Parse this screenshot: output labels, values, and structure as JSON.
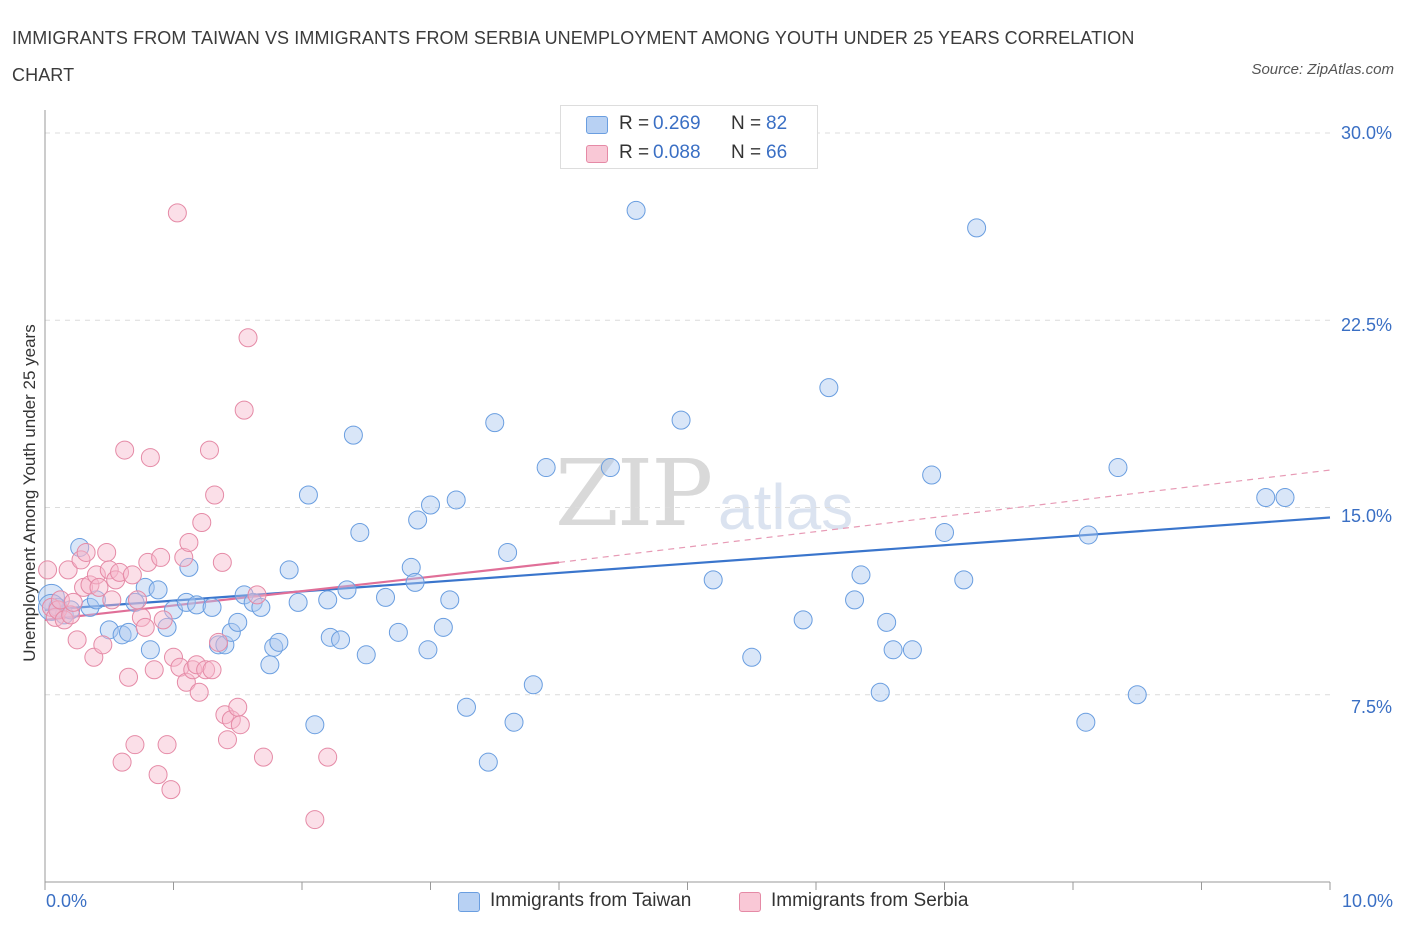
{
  "title": "IMMIGRANTS FROM TAIWAN VS IMMIGRANTS FROM SERBIA UNEMPLOYMENT AMONG YOUTH UNDER 25 YEARS CORRELATION CHART",
  "source": "Source: ZipAtlas.com",
  "watermark": {
    "zip": "ZIP",
    "atlas": "atlas"
  },
  "legend_top": [
    {
      "r_label": "R = ",
      "r_value": "0.269",
      "n_label": "N = ",
      "n_value": "82",
      "color": "#aac8f0"
    },
    {
      "r_label": "R = ",
      "r_value": "0.088",
      "n_label": "N = ",
      "n_value": "66",
      "color": "#f7b9cb"
    }
  ],
  "chart_data": {
    "type": "scatter",
    "title": "IMMIGRANTS FROM TAIWAN VS IMMIGRANTS FROM SERBIA UNEMPLOYMENT AMONG YOUTH UNDER 25 YEARS CORRELATION CHART",
    "xlabel": "",
    "ylabel": "Unemployment Among Youth under 25 years",
    "xlim": [
      0,
      10
    ],
    "ylim": [
      0,
      30.5
    ],
    "x_tick_labels": [
      "0.0%",
      "10.0%"
    ],
    "y_ticks": [
      7.5,
      15.0,
      22.5,
      30.0
    ],
    "y_tick_labels": [
      "7.5%",
      "15.0%",
      "22.5%",
      "30.0%"
    ],
    "grid": true,
    "legend_position": "bottom",
    "series": [
      {
        "name": "Immigrants from Taiwan",
        "color": "#6a9ee0",
        "fill": "#aac8f0",
        "trend": {
          "x": [
            0,
            10
          ],
          "y": [
            10.9,
            14.6
          ],
          "style": "solid"
        },
        "points": [
          [
            0.05,
            11.4
          ],
          [
            0.1,
            11.0
          ],
          [
            0.15,
            10.7
          ],
          [
            0.2,
            10.9
          ],
          [
            0.27,
            13.4
          ],
          [
            0.35,
            11.0
          ],
          [
            0.4,
            11.3
          ],
          [
            0.5,
            10.1
          ],
          [
            0.6,
            9.9
          ],
          [
            0.65,
            10.0
          ],
          [
            0.7,
            11.2
          ],
          [
            0.78,
            11.8
          ],
          [
            0.82,
            9.3
          ],
          [
            0.88,
            11.7
          ],
          [
            0.95,
            10.2
          ],
          [
            1.0,
            10.9
          ],
          [
            1.1,
            11.2
          ],
          [
            1.12,
            12.6
          ],
          [
            1.18,
            11.1
          ],
          [
            1.3,
            11.0
          ],
          [
            1.35,
            9.5
          ],
          [
            1.4,
            9.5
          ],
          [
            1.45,
            10.0
          ],
          [
            1.5,
            10.4
          ],
          [
            1.55,
            11.5
          ],
          [
            1.62,
            11.2
          ],
          [
            1.68,
            11.0
          ],
          [
            1.75,
            8.7
          ],
          [
            1.78,
            9.4
          ],
          [
            1.82,
            9.6
          ],
          [
            1.9,
            12.5
          ],
          [
            1.97,
            11.2
          ],
          [
            2.05,
            15.5
          ],
          [
            2.1,
            6.3
          ],
          [
            2.2,
            11.3
          ],
          [
            2.22,
            9.8
          ],
          [
            2.3,
            9.7
          ],
          [
            2.35,
            11.7
          ],
          [
            2.4,
            17.9
          ],
          [
            2.45,
            14.0
          ],
          [
            2.5,
            9.1
          ],
          [
            2.65,
            11.4
          ],
          [
            2.75,
            10.0
          ],
          [
            2.85,
            12.6
          ],
          [
            2.88,
            12.0
          ],
          [
            2.9,
            14.5
          ],
          [
            2.98,
            9.3
          ],
          [
            3.0,
            15.1
          ],
          [
            3.1,
            10.2
          ],
          [
            3.15,
            11.3
          ],
          [
            3.2,
            15.3
          ],
          [
            3.28,
            7.0
          ],
          [
            3.45,
            4.8
          ],
          [
            3.5,
            18.4
          ],
          [
            3.6,
            13.2
          ],
          [
            3.65,
            6.4
          ],
          [
            3.8,
            7.9
          ],
          [
            3.9,
            16.6
          ],
          [
            4.4,
            16.6
          ],
          [
            4.6,
            26.9
          ],
          [
            4.95,
            18.5
          ],
          [
            5.2,
            12.1
          ],
          [
            5.5,
            9.0
          ],
          [
            5.9,
            10.5
          ],
          [
            6.1,
            19.8
          ],
          [
            6.3,
            11.3
          ],
          [
            6.35,
            12.3
          ],
          [
            6.5,
            7.6
          ],
          [
            6.55,
            10.4
          ],
          [
            6.6,
            9.3
          ],
          [
            6.75,
            9.3
          ],
          [
            6.9,
            16.3
          ],
          [
            7.0,
            14.0
          ],
          [
            7.15,
            12.1
          ],
          [
            7.25,
            26.2
          ],
          [
            8.1,
            6.4
          ],
          [
            8.12,
            13.9
          ],
          [
            8.35,
            16.6
          ],
          [
            8.5,
            7.5
          ],
          [
            9.5,
            15.4
          ],
          [
            9.65,
            15.4
          ],
          [
            0.05,
            11.0
          ]
        ]
      },
      {
        "name": "Immigrants from Serbia",
        "color": "#e58aa6",
        "fill": "#f7b9cb",
        "trend": {
          "x": [
            0,
            4.0
          ],
          "y": [
            10.5,
            12.8
          ],
          "style": "solid",
          "extension": {
            "x": [
              4.0,
              10
            ],
            "y": [
              12.8,
              16.5
            ],
            "style": "dashed"
          }
        },
        "points": [
          [
            0.02,
            12.5
          ],
          [
            0.05,
            11.0
          ],
          [
            0.08,
            10.6
          ],
          [
            0.1,
            10.9
          ],
          [
            0.12,
            11.3
          ],
          [
            0.15,
            10.5
          ],
          [
            0.18,
            12.5
          ],
          [
            0.2,
            10.7
          ],
          [
            0.22,
            11.2
          ],
          [
            0.25,
            9.7
          ],
          [
            0.28,
            12.9
          ],
          [
            0.3,
            11.8
          ],
          [
            0.32,
            13.2
          ],
          [
            0.35,
            11.9
          ],
          [
            0.38,
            9.0
          ],
          [
            0.4,
            12.3
          ],
          [
            0.42,
            11.8
          ],
          [
            0.45,
            9.5
          ],
          [
            0.48,
            13.2
          ],
          [
            0.5,
            12.5
          ],
          [
            0.52,
            11.3
          ],
          [
            0.55,
            12.1
          ],
          [
            0.58,
            12.4
          ],
          [
            0.6,
            4.8
          ],
          [
            0.62,
            17.3
          ],
          [
            0.65,
            8.2
          ],
          [
            0.68,
            12.3
          ],
          [
            0.7,
            5.5
          ],
          [
            0.72,
            11.3
          ],
          [
            0.75,
            10.6
          ],
          [
            0.78,
            10.2
          ],
          [
            0.8,
            12.8
          ],
          [
            0.82,
            17.0
          ],
          [
            0.85,
            8.5
          ],
          [
            0.88,
            4.3
          ],
          [
            0.9,
            13.0
          ],
          [
            0.92,
            10.5
          ],
          [
            0.95,
            5.5
          ],
          [
            0.98,
            3.7
          ],
          [
            1.0,
            9.0
          ],
          [
            1.03,
            26.8
          ],
          [
            1.05,
            8.6
          ],
          [
            1.08,
            13.0
          ],
          [
            1.1,
            8.0
          ],
          [
            1.12,
            13.6
          ],
          [
            1.15,
            8.5
          ],
          [
            1.18,
            8.7
          ],
          [
            1.2,
            7.6
          ],
          [
            1.22,
            14.4
          ],
          [
            1.25,
            8.5
          ],
          [
            1.28,
            17.3
          ],
          [
            1.3,
            8.5
          ],
          [
            1.32,
            15.5
          ],
          [
            1.35,
            9.6
          ],
          [
            1.38,
            12.8
          ],
          [
            1.4,
            6.7
          ],
          [
            1.42,
            5.7
          ],
          [
            1.45,
            6.5
          ],
          [
            1.5,
            7.0
          ],
          [
            1.52,
            6.3
          ],
          [
            1.55,
            18.9
          ],
          [
            1.58,
            21.8
          ],
          [
            1.65,
            11.5
          ],
          [
            1.7,
            5.0
          ],
          [
            2.1,
            2.5
          ],
          [
            2.2,
            5.0
          ]
        ]
      }
    ]
  },
  "legend_bottom": [
    {
      "label": "Immigrants from Taiwan",
      "color": "#aac8f0",
      "border": "#6a9ee0"
    },
    {
      "label": "Immigrants from Serbia",
      "color": "#f7b9cb",
      "border": "#e58aa6"
    }
  ]
}
